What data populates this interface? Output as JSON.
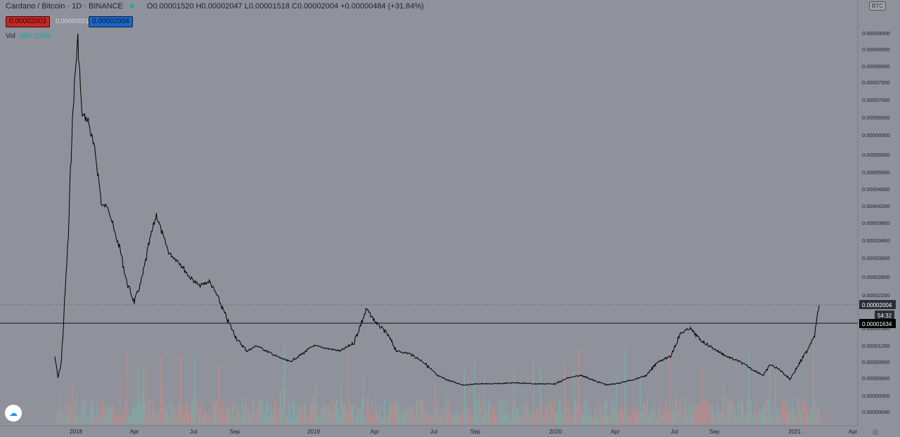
{
  "header": {
    "title": "Cardano / Bitcoin · 1D · BINANCE",
    "ohlc": "O0.00001520 H0.00002047 L0.00001518 C0.00002004 +0.00000484 (+31.84%)",
    "sell_price": "0.00002003",
    "spread": "0.00000001",
    "buy_price": "0.00002004",
    "vol_label": "Vol",
    "vol_value": "580.266M",
    "currency": "BTC"
  },
  "chart_data": {
    "type": "line",
    "title": "Cardano / Bitcoin · 1D · BINANCE",
    "ylim": [
      0,
      0.0001
    ],
    "y_ticks": [
      "0.00000040",
      "0.00000300",
      "0.00000600",
      "0.00000900",
      "0.00001200",
      "0.00001500",
      "0.00002200",
      "0.00002600",
      "0.00003000",
      "0.00003400",
      "0.00003800",
      "0.00004200",
      "0.00004600",
      "0.00005000",
      "0.00005500",
      "0.00006000",
      "0.00006500",
      "0.00007000",
      "0.00007500",
      "0.00008000",
      "0.00008500",
      "0.00009000"
    ],
    "x_ticks": [
      "2018",
      "Apr",
      "Jul",
      "Sep",
      "2019",
      "Apr",
      "Jul",
      "Sep",
      "2020",
      "Apr",
      "Jul",
      "Sep",
      "2021",
      "Apr"
    ],
    "last_price_label": "0.00002004",
    "crosshair_price": "0.00001634",
    "countdown": "54:32",
    "series": [
      {
        "values": [
          [
            "2017-11-01",
            1e-05
          ],
          [
            "2017-11-10",
            6e-06
          ],
          [
            "2017-11-20",
            9e-06
          ],
          [
            "2017-12-01",
            2.3e-05
          ],
          [
            "2017-12-10",
            3.5e-05
          ],
          [
            "2017-12-20",
            6e-05
          ],
          [
            "2017-12-28",
            7.5e-05
          ],
          [
            "2018-01-04",
            8.8e-05
          ],
          [
            "2018-01-10",
            6.6e-05
          ],
          [
            "2018-01-20",
            6.4e-05
          ],
          [
            "2018-02-01",
            5.4e-05
          ],
          [
            "2018-02-10",
            4.2e-05
          ],
          [
            "2018-02-20",
            4.2e-05
          ],
          [
            "2018-03-01",
            3.6e-05
          ],
          [
            "2018-03-10",
            3.2e-05
          ],
          [
            "2018-03-20",
            2.5e-05
          ],
          [
            "2018-04-01",
            2.05e-05
          ],
          [
            "2018-04-12",
            2.5e-05
          ],
          [
            "2018-04-25",
            3.4e-05
          ],
          [
            "2018-05-05",
            4e-05
          ],
          [
            "2018-05-15",
            3.5e-05
          ],
          [
            "2018-05-25",
            3.1e-05
          ],
          [
            "2018-06-10",
            2.9e-05
          ],
          [
            "2018-06-25",
            2.6e-05
          ],
          [
            "2018-07-10",
            2.4e-05
          ],
          [
            "2018-07-25",
            2.5e-05
          ],
          [
            "2018-08-05",
            2.2e-05
          ],
          [
            "2018-08-20",
            1.7e-05
          ],
          [
            "2018-09-05",
            1.3e-05
          ],
          [
            "2018-09-20",
            1.1e-05
          ],
          [
            "2018-10-05",
            1.2e-05
          ],
          [
            "2018-10-20",
            1.1e-05
          ],
          [
            "2018-11-05",
            1e-05
          ],
          [
            "2018-11-25",
            9e-06
          ],
          [
            "2018-12-15",
            1.05e-05
          ],
          [
            "2019-01-01",
            1.2e-05
          ],
          [
            "2019-01-20",
            1.15e-05
          ],
          [
            "2019-02-10",
            1.1e-05
          ],
          [
            "2019-03-01",
            1.25e-05
          ],
          [
            "2019-03-20",
            1.9e-05
          ],
          [
            "2019-04-01",
            1.65e-05
          ],
          [
            "2019-04-20",
            1.4e-05
          ],
          [
            "2019-05-05",
            1.1e-05
          ],
          [
            "2019-05-25",
            1.05e-05
          ],
          [
            "2019-06-15",
            9e-06
          ],
          [
            "2019-07-05",
            6.5e-06
          ],
          [
            "2019-07-25",
            5.5e-06
          ],
          [
            "2019-08-15",
            4.8e-06
          ],
          [
            "2019-09-05",
            5e-06
          ],
          [
            "2019-10-01",
            5e-06
          ],
          [
            "2019-11-01",
            5.2e-06
          ],
          [
            "2019-12-01",
            5e-06
          ],
          [
            "2020-01-01",
            5e-06
          ],
          [
            "2020-01-20",
            6e-06
          ],
          [
            "2020-02-10",
            6.5e-06
          ],
          [
            "2020-03-01",
            5.5e-06
          ],
          [
            "2020-03-20",
            4.8e-06
          ],
          [
            "2020-04-10",
            5.2e-06
          ],
          [
            "2020-05-01",
            5.8e-06
          ],
          [
            "2020-05-20",
            6.5e-06
          ],
          [
            "2020-06-05",
            9e-06
          ],
          [
            "2020-06-25",
            1e-05
          ],
          [
            "2020-07-10",
            1.4e-05
          ],
          [
            "2020-07-25",
            1.5e-05
          ],
          [
            "2020-08-10",
            1.3e-05
          ],
          [
            "2020-08-30",
            1.15e-05
          ],
          [
            "2020-09-20",
            1e-05
          ],
          [
            "2020-10-10",
            9e-06
          ],
          [
            "2020-10-30",
            7.5e-06
          ],
          [
            "2020-11-15",
            6.5e-06
          ],
          [
            "2020-11-25",
            8.5e-06
          ],
          [
            "2020-12-10",
            7.5e-06
          ],
          [
            "2020-12-25",
            5.8e-06
          ],
          [
            "2021-01-05",
            8e-06
          ],
          [
            "2021-01-20",
            1.1e-05
          ],
          [
            "2021-02-01",
            1.4e-05
          ],
          [
            "2021-02-08",
            2e-05
          ]
        ]
      }
    ]
  }
}
